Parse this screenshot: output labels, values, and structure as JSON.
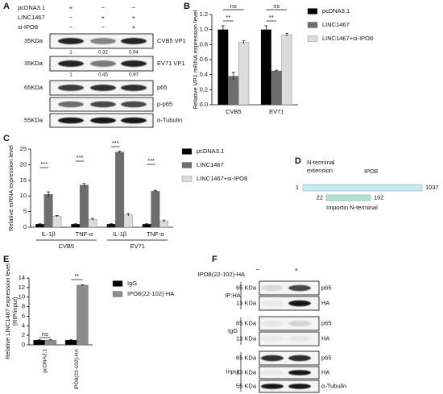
{
  "panel_letters": [
    "A",
    "B",
    "C",
    "D",
    "E",
    "F"
  ],
  "chart_data": [
    {
      "type": "bar",
      "y_label": "Relative VP1 mRNA  expression level",
      "categories": [
        "CVB5",
        "EV71"
      ],
      "series": [
        {
          "name": "pcDNA3.1",
          "color": "#000000",
          "values": [
            1.0,
            1.0
          ],
          "errors": [
            0.05,
            0.05
          ]
        },
        {
          "name": "LINC1467",
          "color": "#6e6e6e",
          "values": [
            0.38,
            0.45
          ],
          "errors": [
            0.05,
            0.01
          ]
        },
        {
          "name": "LINC1467+si-IPO8",
          "color": "#dcdcdc",
          "values": [
            0.83,
            0.93
          ],
          "errors": [
            0.02,
            0.02
          ]
        }
      ],
      "ylim": [
        0,
        1.2
      ],
      "yticks": [
        {
          "value": 0,
          "label": "0.0"
        },
        0.2,
        0.4,
        0.6,
        0.8,
        {
          "value": 1,
          "label": "1.0"
        },
        1.2
      ],
      "annotations": [
        "ns",
        "**",
        "ns",
        "**"
      ]
    },
    {
      "type": "bar",
      "y_label": "Relative mRNA  expression level",
      "categories": [
        "IL-1β",
        "TNF-α",
        "IL-1β",
        "TNF-α"
      ],
      "category_groups": [
        "CVB5",
        "EV71"
      ],
      "series": [
        {
          "name": "pcDNA3.1",
          "color": "#000000",
          "values": [
            1.0,
            1.0,
            1.0,
            1.0
          ],
          "errors": [
            0.1,
            0.1,
            0.1,
            0.1
          ]
        },
        {
          "name": "LINC1467",
          "color": "#6e6e6e",
          "values": [
            10.5,
            13.5,
            24,
            11.5
          ],
          "errors": [
            0.8,
            0.5,
            0.3,
            0.3
          ]
        },
        {
          "name": "LINC1467+si-IPO8",
          "color": "#dcdcdc",
          "values": [
            3.5,
            2.5,
            4.0,
            2.0
          ],
          "errors": [
            0.2,
            0.3,
            0.4,
            0.3
          ]
        }
      ],
      "ylim": [
        0,
        25
      ],
      "yticks": [
        0,
        5,
        10,
        15,
        20,
        25
      ],
      "annotations": [
        "***",
        "***",
        "***",
        "***"
      ]
    },
    {
      "type": "bar",
      "y_label": [
        "Relative LINC1467 expression level",
        "(RIP/input)"
      ],
      "categories": [
        "pcDNA3.1",
        "IPO8(22-102)-HA"
      ],
      "series": [
        {
          "name": "IgG",
          "color": "#000000",
          "values": [
            1.0,
            1.0
          ],
          "errors": [
            0.05,
            0.05
          ]
        },
        {
          "name": "IPO8(22-102)-HA",
          "color": "#8c8c8c",
          "values": [
            1.0,
            12.5
          ],
          "errors": [
            0.05,
            0.1
          ]
        }
      ],
      "ylim": [
        0,
        14
      ],
      "yticks": [
        0,
        2,
        4,
        6,
        8,
        10,
        12,
        14
      ],
      "annotations": [
        "ns",
        "**"
      ]
    }
  ],
  "blot_a": {
    "header_rows": [
      {
        "label": "pcDNA3.1",
        "signs": [
          "+",
          "−",
          "−"
        ]
      },
      {
        "label": "LINC1467",
        "signs": [
          "−",
          "+",
          "+"
        ]
      },
      {
        "label": "si-IPO8",
        "signs": [
          "−",
          "−",
          "+"
        ]
      }
    ],
    "rows": [
      {
        "size": "35KDa",
        "name": "CVB5 VP1",
        "quant": [
          1,
          0.32,
          0.94
        ]
      },
      {
        "size": "35KDa",
        "name": "EV71 VP1",
        "quant": [
          1,
          0.45,
          0.97
        ]
      },
      {
        "size": "65KDa",
        "name": "p65"
      },
      {
        "name": "p-p65"
      },
      {
        "size": "55KDa",
        "name": "α-Tubulin"
      }
    ]
  },
  "domain_diagram": {
    "protein": "IPO8",
    "start": "1",
    "end": "1037",
    "extension_label": [
      "N-terminal",
      "extension"
    ],
    "domain": {
      "name": "Importin N-terminal",
      "start": "22",
      "end": "102"
    }
  },
  "blot_f": {
    "header": {
      "label": "IPO8(22-102)-HA",
      "signs": [
        "−",
        "+"
      ]
    },
    "groups": [
      {
        "name": "IP:HA",
        "rows": [
          {
            "size": "65 KDa",
            "name": "p65"
          },
          {
            "size": "13 KDa",
            "name": "HA"
          }
        ]
      },
      {
        "name": "IgG",
        "rows": [
          {
            "size": "65 KDa",
            "name": "p65"
          },
          {
            "size": "13 KDa",
            "name": "HA"
          }
        ]
      },
      {
        "name": "Input",
        "rows": [
          {
            "size": "65 KDa",
            "name": "p65"
          },
          {
            "size": "13 KDa",
            "name": "HA"
          },
          {
            "size": "55 KDa",
            "name": "α-Tubulin"
          }
        ]
      }
    ]
  }
}
